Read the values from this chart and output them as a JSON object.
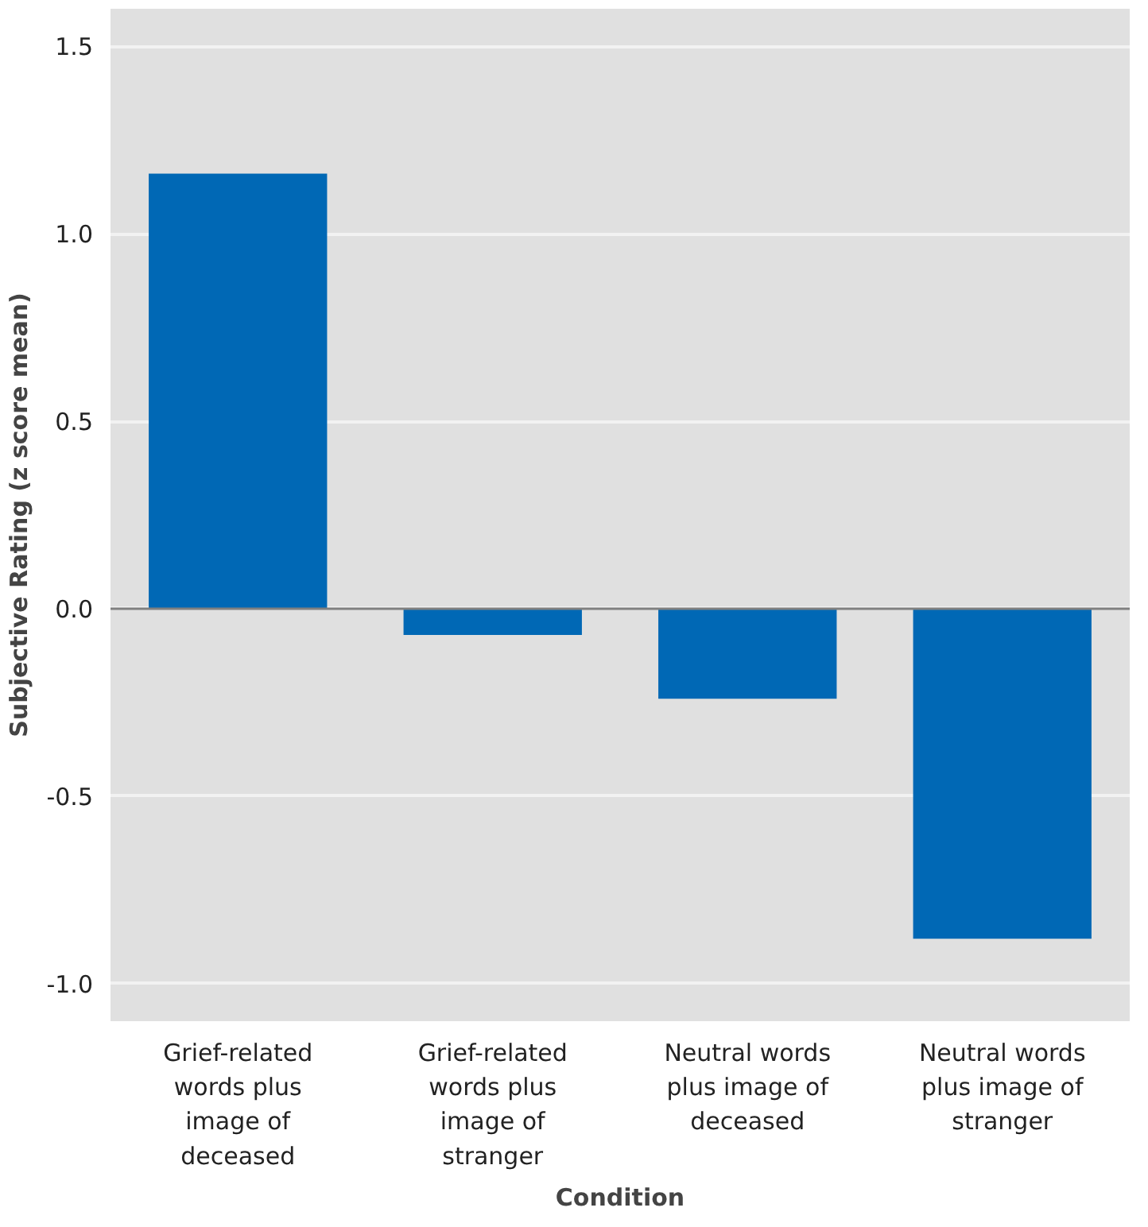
{
  "chart_data": {
    "type": "bar",
    "xlabel": "Condition",
    "ylabel": "Subjective Rating (z score mean)",
    "categories": [
      "Grief-related words plus image of deceased",
      "Grief-related words plus image of stranger",
      "Neutral words plus image of deceased",
      "Neutral words plus image of stranger"
    ],
    "values": [
      1.16,
      -0.07,
      -0.24,
      -0.88
    ],
    "color": "#0068b5",
    "ylim": [
      -1.1,
      1.6
    ],
    "yticks": [
      {
        "value": -1,
        "label": "-1.0"
      },
      {
        "value": -0.5,
        "label": "-0.5"
      },
      {
        "value": 0,
        "label": "0.0"
      },
      {
        "value": 0.5,
        "label": "0.5"
      },
      {
        "value": 1,
        "label": "1.0"
      },
      {
        "value": 1.5,
        "label": "1.5"
      }
    ],
    "grid": "y"
  }
}
